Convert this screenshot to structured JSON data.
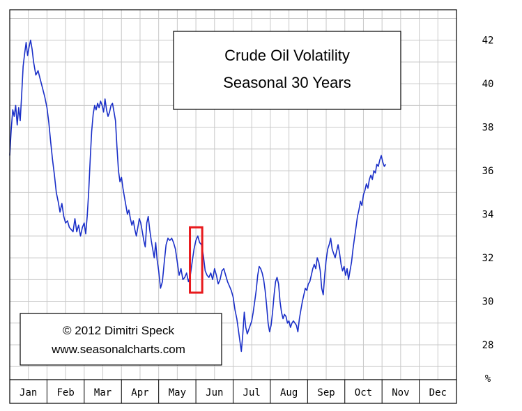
{
  "chart_data": {
    "type": "line",
    "title": [
      "Crude Oil Volatility",
      "Seasonal 30 Years"
    ],
    "credit": [
      "© 2012  Dimitri Speck",
      "www.seasonalcharts.com"
    ],
    "x_categories": [
      "Jan",
      "Feb",
      "Mar",
      "Apr",
      "May",
      "Jun",
      "Jul",
      "Aug",
      "Sep",
      "Oct",
      "Nov",
      "Dec"
    ],
    "y_ticks": [
      28,
      30,
      32,
      34,
      36,
      38,
      40,
      42
    ],
    "y_unit": "%",
    "ylim": [
      26.4,
      43.4
    ],
    "grid": true,
    "line_color": "#1a2fc8",
    "highlight_color": "#e8191c",
    "highlight": {
      "x_start": 4.84,
      "x_end": 5.17,
      "y_low": 30.4,
      "y_high": 33.4
    },
    "series": [
      {
        "points": [
          [
            0.0,
            36.7
          ],
          [
            0.04,
            37.9
          ],
          [
            0.08,
            38.8
          ],
          [
            0.12,
            38.5
          ],
          [
            0.16,
            39.0
          ],
          [
            0.2,
            38.1
          ],
          [
            0.24,
            38.9
          ],
          [
            0.28,
            38.3
          ],
          [
            0.32,
            39.5
          ],
          [
            0.36,
            40.8
          ],
          [
            0.4,
            41.4
          ],
          [
            0.44,
            41.9
          ],
          [
            0.48,
            41.3
          ],
          [
            0.52,
            41.7
          ],
          [
            0.56,
            42.0
          ],
          [
            0.6,
            41.6
          ],
          [
            0.64,
            41.0
          ],
          [
            0.7,
            40.4
          ],
          [
            0.76,
            40.6
          ],
          [
            0.82,
            40.2
          ],
          [
            0.88,
            39.8
          ],
          [
            0.94,
            39.4
          ],
          [
            1.0,
            38.9
          ],
          [
            1.05,
            38.2
          ],
          [
            1.1,
            37.3
          ],
          [
            1.15,
            36.5
          ],
          [
            1.2,
            35.8
          ],
          [
            1.25,
            35.0
          ],
          [
            1.3,
            34.6
          ],
          [
            1.35,
            34.1
          ],
          [
            1.4,
            34.5
          ],
          [
            1.45,
            33.9
          ],
          [
            1.5,
            33.6
          ],
          [
            1.55,
            33.7
          ],
          [
            1.6,
            33.4
          ],
          [
            1.65,
            33.3
          ],
          [
            1.7,
            33.2
          ],
          [
            1.75,
            33.8
          ],
          [
            1.8,
            33.2
          ],
          [
            1.85,
            33.5
          ],
          [
            1.9,
            33.0
          ],
          [
            1.95,
            33.4
          ],
          [
            2.0,
            33.6
          ],
          [
            2.04,
            33.1
          ],
          [
            2.08,
            33.9
          ],
          [
            2.12,
            35.0
          ],
          [
            2.16,
            36.5
          ],
          [
            2.2,
            37.8
          ],
          [
            2.24,
            38.6
          ],
          [
            2.28,
            39.0
          ],
          [
            2.32,
            38.8
          ],
          [
            2.36,
            39.1
          ],
          [
            2.4,
            38.9
          ],
          [
            2.44,
            39.2
          ],
          [
            2.48,
            39.0
          ],
          [
            2.52,
            38.7
          ],
          [
            2.56,
            39.3
          ],
          [
            2.6,
            38.8
          ],
          [
            2.64,
            38.5
          ],
          [
            2.68,
            38.7
          ],
          [
            2.72,
            39.0
          ],
          [
            2.76,
            39.1
          ],
          [
            2.8,
            38.7
          ],
          [
            2.84,
            38.3
          ],
          [
            2.88,
            37.1
          ],
          [
            2.92,
            36.0
          ],
          [
            2.96,
            35.5
          ],
          [
            3.0,
            35.7
          ],
          [
            3.04,
            35.2
          ],
          [
            3.08,
            34.8
          ],
          [
            3.12,
            34.4
          ],
          [
            3.16,
            34.0
          ],
          [
            3.2,
            34.2
          ],
          [
            3.24,
            33.8
          ],
          [
            3.28,
            33.5
          ],
          [
            3.32,
            33.7
          ],
          [
            3.36,
            33.3
          ],
          [
            3.4,
            33.0
          ],
          [
            3.44,
            33.4
          ],
          [
            3.48,
            33.8
          ],
          [
            3.52,
            33.6
          ],
          [
            3.56,
            33.2
          ],
          [
            3.6,
            32.8
          ],
          [
            3.64,
            32.5
          ],
          [
            3.68,
            33.6
          ],
          [
            3.72,
            33.9
          ],
          [
            3.76,
            33.3
          ],
          [
            3.8,
            32.8
          ],
          [
            3.84,
            32.4
          ],
          [
            3.88,
            32.0
          ],
          [
            3.92,
            32.7
          ],
          [
            3.96,
            31.9
          ],
          [
            4.0,
            31.4
          ],
          [
            4.05,
            30.6
          ],
          [
            4.1,
            30.9
          ],
          [
            4.15,
            31.8
          ],
          [
            4.2,
            32.6
          ],
          [
            4.25,
            32.9
          ],
          [
            4.3,
            32.8
          ],
          [
            4.35,
            32.9
          ],
          [
            4.4,
            32.7
          ],
          [
            4.45,
            32.4
          ],
          [
            4.5,
            31.8
          ],
          [
            4.55,
            31.2
          ],
          [
            4.6,
            31.5
          ],
          [
            4.65,
            31.0
          ],
          [
            4.7,
            31.1
          ],
          [
            4.75,
            31.3
          ],
          [
            4.8,
            30.9
          ],
          [
            4.85,
            31.2
          ],
          [
            4.9,
            31.8
          ],
          [
            4.95,
            32.4
          ],
          [
            5.0,
            32.8
          ],
          [
            5.05,
            33.0
          ],
          [
            5.1,
            32.7
          ],
          [
            5.15,
            32.6
          ],
          [
            5.2,
            32.1
          ],
          [
            5.25,
            31.4
          ],
          [
            5.3,
            31.2
          ],
          [
            5.35,
            31.1
          ],
          [
            5.4,
            31.3
          ],
          [
            5.45,
            31.0
          ],
          [
            5.5,
            31.5
          ],
          [
            5.55,
            31.2
          ],
          [
            5.6,
            30.8
          ],
          [
            5.65,
            31.0
          ],
          [
            5.7,
            31.4
          ],
          [
            5.75,
            31.5
          ],
          [
            5.8,
            31.2
          ],
          [
            5.85,
            30.9
          ],
          [
            5.9,
            30.7
          ],
          [
            5.95,
            30.5
          ],
          [
            6.0,
            30.2
          ],
          [
            6.05,
            29.6
          ],
          [
            6.1,
            29.2
          ],
          [
            6.14,
            28.7
          ],
          [
            6.18,
            28.2
          ],
          [
            6.22,
            27.7
          ],
          [
            6.26,
            28.5
          ],
          [
            6.3,
            29.5
          ],
          [
            6.34,
            28.8
          ],
          [
            6.38,
            28.5
          ],
          [
            6.42,
            28.7
          ],
          [
            6.46,
            28.9
          ],
          [
            6.5,
            29.1
          ],
          [
            6.54,
            29.5
          ],
          [
            6.58,
            30.0
          ],
          [
            6.62,
            30.5
          ],
          [
            6.66,
            31.2
          ],
          [
            6.7,
            31.6
          ],
          [
            6.74,
            31.5
          ],
          [
            6.78,
            31.3
          ],
          [
            6.82,
            31.0
          ],
          [
            6.86,
            30.5
          ],
          [
            6.9,
            29.8
          ],
          [
            6.94,
            29.0
          ],
          [
            6.98,
            28.6
          ],
          [
            7.02,
            28.9
          ],
          [
            7.06,
            29.5
          ],
          [
            7.1,
            30.3
          ],
          [
            7.14,
            30.9
          ],
          [
            7.18,
            31.1
          ],
          [
            7.22,
            30.8
          ],
          [
            7.26,
            30.0
          ],
          [
            7.3,
            29.5
          ],
          [
            7.34,
            29.2
          ],
          [
            7.38,
            29.4
          ],
          [
            7.42,
            29.3
          ],
          [
            7.46,
            29.0
          ],
          [
            7.5,
            29.1
          ],
          [
            7.54,
            28.8
          ],
          [
            7.58,
            29.0
          ],
          [
            7.62,
            29.1
          ],
          [
            7.66,
            29.0
          ],
          [
            7.7,
            28.9
          ],
          [
            7.74,
            28.6
          ],
          [
            7.78,
            29.2
          ],
          [
            7.82,
            29.6
          ],
          [
            7.86,
            30.0
          ],
          [
            7.9,
            30.3
          ],
          [
            7.94,
            30.6
          ],
          [
            7.98,
            30.5
          ],
          [
            8.02,
            30.8
          ],
          [
            8.06,
            30.9
          ],
          [
            8.1,
            31.2
          ],
          [
            8.14,
            31.5
          ],
          [
            8.18,
            31.7
          ],
          [
            8.22,
            31.5
          ],
          [
            8.26,
            32.0
          ],
          [
            8.3,
            31.8
          ],
          [
            8.34,
            31.4
          ],
          [
            8.38,
            30.6
          ],
          [
            8.42,
            30.3
          ],
          [
            8.46,
            31.2
          ],
          [
            8.5,
            31.9
          ],
          [
            8.54,
            32.4
          ],
          [
            8.58,
            32.6
          ],
          [
            8.62,
            32.9
          ],
          [
            8.66,
            32.4
          ],
          [
            8.7,
            32.2
          ],
          [
            8.74,
            32.0
          ],
          [
            8.78,
            32.3
          ],
          [
            8.82,
            32.6
          ],
          [
            8.86,
            32.2
          ],
          [
            8.9,
            31.7
          ],
          [
            8.94,
            31.4
          ],
          [
            8.98,
            31.6
          ],
          [
            9.02,
            31.2
          ],
          [
            9.06,
            31.5
          ],
          [
            9.1,
            31.0
          ],
          [
            9.14,
            31.4
          ],
          [
            9.18,
            31.8
          ],
          [
            9.22,
            32.4
          ],
          [
            9.26,
            32.9
          ],
          [
            9.3,
            33.4
          ],
          [
            9.34,
            33.9
          ],
          [
            9.38,
            34.2
          ],
          [
            9.42,
            34.6
          ],
          [
            9.46,
            34.4
          ],
          [
            9.5,
            34.9
          ],
          [
            9.54,
            35.1
          ],
          [
            9.58,
            35.4
          ],
          [
            9.62,
            35.2
          ],
          [
            9.66,
            35.6
          ],
          [
            9.7,
            35.8
          ],
          [
            9.74,
            35.6
          ],
          [
            9.78,
            36.0
          ],
          [
            9.82,
            35.9
          ],
          [
            9.86,
            36.3
          ],
          [
            9.9,
            36.2
          ],
          [
            9.94,
            36.5
          ],
          [
            9.98,
            36.7
          ],
          [
            10.02,
            36.4
          ],
          [
            10.06,
            36.2
          ],
          [
            10.1,
            36.3
          ]
        ]
      }
    ]
  }
}
